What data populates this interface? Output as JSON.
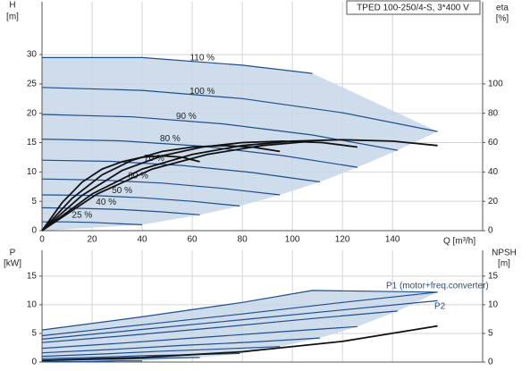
{
  "chart_data": [
    {
      "type": "line",
      "title": "TPED 100-250/4-S, 3*400 V",
      "xlabel": "Q [m³/h]",
      "ylabel": [
        "H",
        "[m]"
      ],
      "y2label": [
        "eta",
        "[%]"
      ],
      "xlim": [
        0,
        176
      ],
      "ylim": [
        0,
        39
      ],
      "y2lim": [
        0,
        156
      ],
      "xticks": [
        0,
        20,
        40,
        60,
        80,
        100,
        120,
        140
      ],
      "yticks": [
        0,
        5,
        10,
        15,
        20,
        25,
        30
      ],
      "y2ticks": [
        0,
        20,
        40,
        60,
        80,
        100
      ],
      "grid": true,
      "series": [
        {
          "name": "110 %",
          "color": "#1f4e8c",
          "x": [
            0,
            40,
            80,
            108
          ],
          "values": [
            29.5,
            29.5,
            28.2,
            26.8
          ]
        },
        {
          "name": "100 %",
          "color": "#1f4e8c",
          "x": [
            0,
            40,
            80,
            120,
            158
          ],
          "values": [
            24.4,
            23.9,
            22.5,
            20.1,
            16.9
          ]
        },
        {
          "name": "90 %",
          "color": "#1f4e8c",
          "x": [
            0,
            36,
            72,
            108,
            142
          ],
          "values": [
            19.8,
            19.4,
            18.2,
            16.3,
            13.7
          ]
        },
        {
          "name": "80 %",
          "color": "#1f4e8c",
          "x": [
            0,
            32,
            64,
            96,
            126
          ],
          "values": [
            15.6,
            15.3,
            14.4,
            12.8,
            10.8
          ]
        },
        {
          "name": "70 %",
          "color": "#1f4e8c",
          "x": [
            0,
            28,
            56,
            84,
            111
          ],
          "values": [
            12.0,
            11.8,
            11.1,
            9.9,
            8.3
          ]
        },
        {
          "name": "60 %",
          "color": "#1f4e8c",
          "x": [
            0,
            24,
            48,
            72,
            95
          ],
          "values": [
            8.8,
            8.6,
            8.1,
            7.2,
            6.1
          ]
        },
        {
          "name": "50 %",
          "color": "#1f4e8c",
          "x": [
            0,
            20,
            40,
            60,
            79
          ],
          "values": [
            6.1,
            6.0,
            5.6,
            5.0,
            4.2
          ]
        },
        {
          "name": "40 %",
          "color": "#1f4e8c",
          "x": [
            0,
            16,
            32,
            48,
            63
          ],
          "values": [
            3.9,
            3.8,
            3.6,
            3.2,
            2.7
          ]
        },
        {
          "name": "25 %",
          "color": "#1f4e8c",
          "x": [
            0,
            10,
            20,
            30,
            40
          ],
          "values": [
            1.5,
            1.5,
            1.4,
            1.2,
            1.0
          ]
        },
        {
          "axis": "y2",
          "color": "#111111",
          "x": [
            0,
            22,
            44,
            66,
            88,
            108
          ],
          "values": [
            0,
            25,
            42,
            52,
            58,
            61
          ]
        },
        {
          "axis": "y2",
          "color": "#111111",
          "x": [
            0,
            20,
            40,
            60,
            80,
            100,
            120,
            140,
            158
          ],
          "values": [
            0,
            25,
            42,
            52,
            58,
            61,
            62,
            61,
            58
          ]
        },
        {
          "axis": "y2",
          "color": "#111111",
          "x": [
            0,
            16,
            32,
            48,
            64,
            80,
            96,
            112,
            126
          ],
          "values": [
            0,
            24,
            41,
            51,
            57,
            60,
            61,
            60,
            57
          ]
        },
        {
          "axis": "y2",
          "color": "#111111",
          "x": [
            0,
            12,
            24,
            36,
            48,
            60,
            72,
            84,
            95
          ],
          "values": [
            0,
            22,
            38,
            48,
            54,
            57,
            58,
            57,
            54
          ]
        },
        {
          "axis": "y2",
          "color": "#111111",
          "x": [
            0,
            8,
            16,
            24,
            32,
            40,
            48,
            56,
            63
          ],
          "values": [
            0,
            19,
            33,
            42,
            47,
            50,
            51,
            50,
            47
          ]
        }
      ]
    },
    {
      "type": "line",
      "ylabel": [
        "P",
        "[kW]"
      ],
      "y2label": [
        "NPSH",
        "[m]"
      ],
      "annotations": [
        "P1 (motor+freq.converter)",
        "P2"
      ],
      "xlim": [
        0,
        176
      ],
      "ylim": [
        0,
        19.5
      ],
      "y2lim": [
        0,
        19.5
      ],
      "yticks": [
        0,
        5,
        10,
        15
      ],
      "y2ticks": [
        0,
        5,
        10,
        15
      ],
      "grid": true,
      "series": [
        {
          "color": "#1f4e8c",
          "x": [
            0,
            40,
            80,
            108,
            158
          ],
          "values": [
            5.6,
            7.9,
            10.4,
            12.5,
            12.2
          ]
        },
        {
          "color": "#1f4e8c",
          "x": [
            0,
            40,
            80,
            120,
            158
          ],
          "values": [
            4.6,
            6.5,
            8.4,
            10.4,
            12.2
          ]
        },
        {
          "color": "#1f4e8c",
          "x": [
            0,
            36,
            72,
            108,
            142
          ],
          "values": [
            3.4,
            4.7,
            6.1,
            7.6,
            8.9
          ]
        },
        {
          "color": "#1f4e8c",
          "x": [
            0,
            32,
            64,
            96,
            126
          ],
          "values": [
            2.4,
            3.3,
            4.3,
            5.3,
            6.2
          ]
        },
        {
          "color": "#1f4e8c",
          "x": [
            0,
            28,
            56,
            84,
            111
          ],
          "values": [
            1.6,
            2.2,
            2.9,
            3.5,
            4.2
          ]
        },
        {
          "color": "#1f4e8c",
          "x": [
            0,
            24,
            48,
            72,
            95
          ],
          "values": [
            1.0,
            1.4,
            1.9,
            2.3,
            2.7
          ]
        },
        {
          "color": "#1f4e8c",
          "x": [
            0,
            20,
            40,
            60,
            79
          ],
          "values": [
            0.6,
            0.8,
            1.1,
            1.3,
            1.5
          ]
        },
        {
          "color": "#1f4e8c",
          "x": [
            0,
            16,
            32,
            48,
            63
          ],
          "values": [
            0.3,
            0.4,
            0.5,
            0.7,
            0.8
          ]
        },
        {
          "color": "#1f4e8c",
          "x": [
            0,
            10,
            20,
            30,
            40
          ],
          "values": [
            0.1,
            0.1,
            0.1,
            0.2,
            0.2
          ]
        },
        {
          "color": "#1f4e8c",
          "x": [
            0,
            40,
            80,
            120,
            158
          ],
          "values": [
            4.0,
            5.7,
            7.4,
            9.1,
            10.7
          ]
        },
        {
          "axis": "y2",
          "color": "#111111",
          "x": [
            0,
            40,
            80,
            120,
            158
          ],
          "values": [
            0.3,
            0.8,
            1.8,
            3.6,
            6.3
          ]
        }
      ]
    }
  ]
}
